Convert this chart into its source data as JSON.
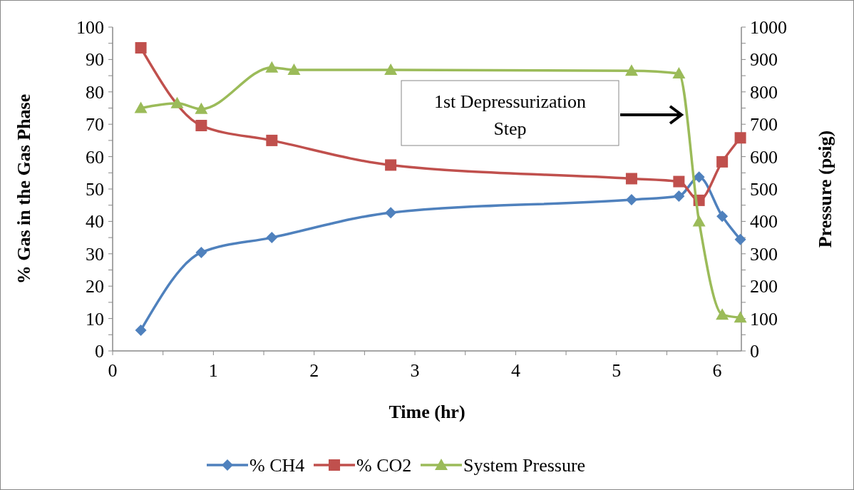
{
  "chart_data": {
    "type": "line",
    "xlabel": "Time (hr)",
    "ylabel": "% Gas in the Gas Phase",
    "y2label": "Pressure (psig)",
    "xlim": [
      0,
      6.24
    ],
    "xticks": [
      0,
      {
        "value": 0.5,
        "label": null
      },
      1,
      {
        "value": 1.5,
        "label": null
      },
      2,
      {
        "value": 2.5,
        "label": null
      },
      3,
      {
        "value": 3.5,
        "label": null
      },
      4,
      {
        "value": 4.5,
        "label": null
      },
      5,
      {
        "value": 5.5,
        "label": null
      },
      6
    ],
    "ylim": [
      0,
      100
    ],
    "yticks": [
      0,
      {
        "value": 5,
        "label": null
      },
      10,
      {
        "value": 15,
        "label": null
      },
      20,
      {
        "value": 25,
        "label": null
      },
      30,
      {
        "value": 35,
        "label": null
      },
      40,
      {
        "value": 45,
        "label": null
      },
      50,
      {
        "value": 55,
        "label": null
      },
      60,
      {
        "value": 65,
        "label": null
      },
      70,
      {
        "value": 75,
        "label": null
      },
      80,
      {
        "value": 85,
        "label": null
      },
      90,
      {
        "value": 95,
        "label": null
      },
      100
    ],
    "y2lim": [
      0,
      1000
    ],
    "y2ticks": [
      0,
      {
        "value": 50,
        "label": null
      },
      100,
      {
        "value": 150,
        "label": null
      },
      200,
      {
        "value": 250,
        "label": null
      },
      300,
      {
        "value": 350,
        "label": null
      },
      400,
      {
        "value": 450,
        "label": null
      },
      500,
      {
        "value": 550,
        "label": null
      },
      600,
      {
        "value": 650,
        "label": null
      },
      700,
      {
        "value": 750,
        "label": null
      },
      800,
      {
        "value": 850,
        "label": null
      },
      900,
      {
        "value": 950,
        "label": null
      },
      1000
    ],
    "legend": "bottom",
    "grid": false,
    "series": [
      {
        "name": "% CH4",
        "color": "#4f81bd",
        "marker": "diamond",
        "x": [
          0.28,
          0.88,
          1.58,
          2.76,
          5.15,
          5.62,
          5.82,
          6.05,
          6.23
        ],
        "values": [
          6.4,
          30.4,
          35,
          42.7,
          46.7,
          47.8,
          53.7,
          41.6,
          34.4
        ]
      },
      {
        "name": "% CO2",
        "color": "#c0504d",
        "marker": "square",
        "x": [
          0.28,
          0.88,
          1.58,
          2.76,
          5.15,
          5.62,
          5.82,
          6.05,
          6.23
        ],
        "values": [
          93.6,
          69.6,
          65,
          57.4,
          53.2,
          52.3,
          46.5,
          58.4,
          65.8
        ]
      },
      {
        "name": "System Pressure",
        "color": "#9bbb59",
        "marker": "triangle",
        "axis": "y2",
        "x": [
          0.28,
          0.64,
          0.88,
          1.58,
          1.8,
          2.76,
          5.15,
          5.62,
          5.82,
          6.05,
          6.23
        ],
        "values": [
          750,
          765,
          747,
          875,
          868,
          868,
          865,
          857,
          400,
          112,
          103
        ]
      }
    ],
    "annotations": [
      "1st Depressurization Step"
    ]
  }
}
